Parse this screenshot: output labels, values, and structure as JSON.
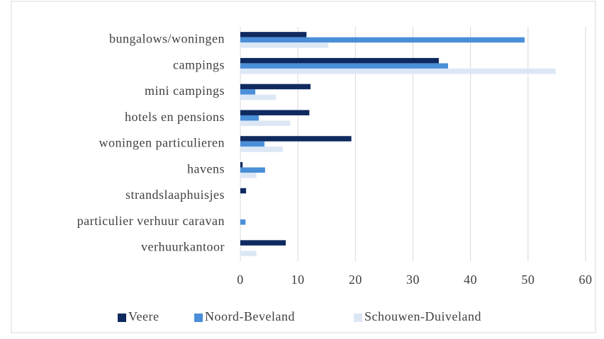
{
  "chart_data": {
    "type": "bar",
    "orientation": "horizontal",
    "categories": [
      "bungalows/woningen",
      "campings",
      "mini campings",
      "hotels en pensions",
      "woningen particulieren",
      "havens",
      "strandslaaphuisjes",
      "particulier verhuur caravan",
      "verhuurkantoor"
    ],
    "series": [
      {
        "name": "Veere",
        "color": "#0f2a5f",
        "values": [
          11.5,
          34.5,
          12.2,
          12.0,
          19.3,
          0.4,
          1.0,
          0,
          7.9
        ]
      },
      {
        "name": "Noord-Beveland",
        "color": "#4a8fd8",
        "values": [
          49.4,
          36.1,
          2.6,
          3.2,
          4.2,
          4.3,
          0,
          0.9,
          0
        ]
      },
      {
        "name": "Schouwen-Duiveland",
        "color": "#dce7f6",
        "values": [
          15.3,
          54.8,
          6.2,
          8.7,
          7.4,
          2.8,
          0,
          0,
          2.8
        ]
      }
    ],
    "xlim": [
      0,
      60
    ],
    "xticks": [
      0,
      10,
      20,
      30,
      40,
      50,
      60
    ],
    "grid": true,
    "legend": "bottom"
  }
}
